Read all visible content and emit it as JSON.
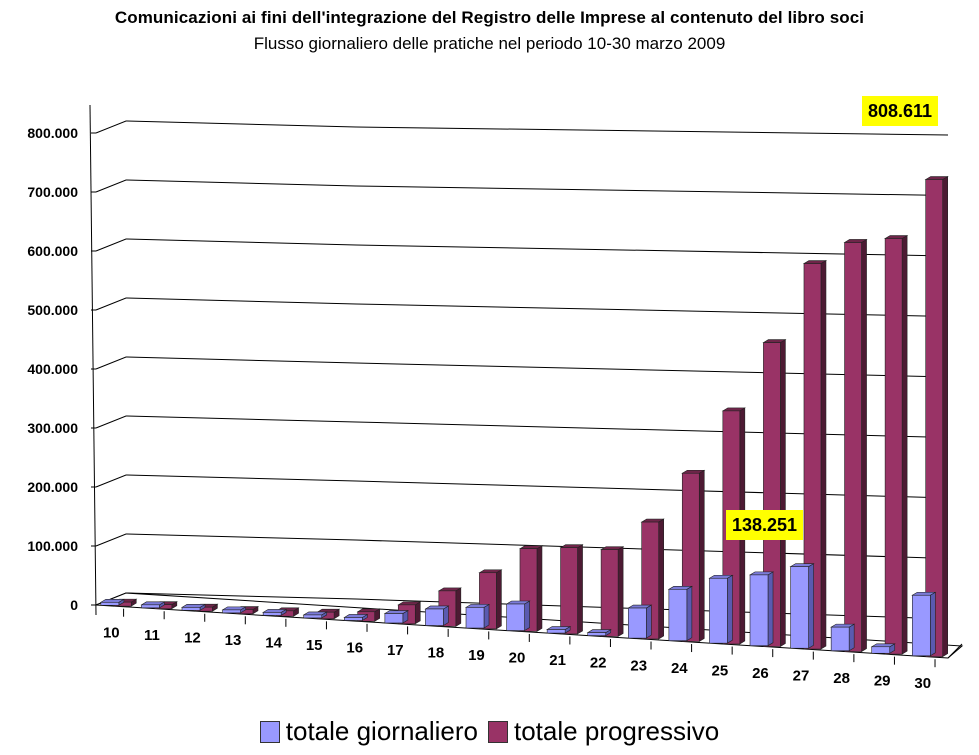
{
  "header": {
    "title": "Comunicazioni ai fini dell'integrazione del Registro delle Imprese al contenuto del libro soci",
    "subtitle": "Flusso giornaliero delle pratiche nel periodo 10-30 marzo 2009"
  },
  "legend": {
    "daily_label": "totale giornaliero",
    "cumulative_label": "totale progressivo"
  },
  "callouts": {
    "max_cumulative": "808.611",
    "max_daily": "138.251"
  },
  "colors": {
    "daily": "#9999ff",
    "daily_side": "#5a5ab0",
    "daily_top": "#7b7bd8",
    "cumulative": "#993366",
    "cumulative_side": "#4d1a33",
    "cumulative_top": "#6e2549",
    "callout_bg": "#ffff00",
    "grid": "#000000"
  },
  "chart_data": {
    "type": "bar",
    "subtype": "3d-clustered-column",
    "title": "Comunicazioni ai fini dell'integrazione del Registro delle Imprese al contenuto del libro soci",
    "subtitle": "Flusso giornaliero delle pratiche nel periodo 10-30 marzo 2009",
    "xlabel": "",
    "ylabel": "",
    "categories": [
      "10",
      "11",
      "12",
      "13",
      "14",
      "15",
      "16",
      "17",
      "18",
      "19",
      "20",
      "21",
      "22",
      "23",
      "24",
      "25",
      "26",
      "27",
      "28",
      "29",
      "30"
    ],
    "series": [
      {
        "name": "totale giornaliero",
        "values": [
          300,
          1800,
          2000,
          3000,
          2000,
          2000,
          5000,
          16000,
          28000,
          35000,
          45000,
          6000,
          1000,
          51000,
          87000,
          110000,
          120000,
          138251,
          40000,
          11000,
          102611
        ]
      },
      {
        "name": "totale progressivo",
        "values": [
          300,
          2100,
          4100,
          7100,
          9100,
          11100,
          16100,
          32100,
          60100,
          95100,
          140100,
          146100,
          147100,
          198100,
          285100,
          395100,
          515100,
          653351,
          693351,
          704351,
          808611
        ]
      }
    ],
    "yticks": [
      "0",
      "100.000",
      "200.000",
      "300.000",
      "400.000",
      "500.000",
      "600.000",
      "700.000",
      "800.000"
    ],
    "ylim": [
      0,
      800000
    ],
    "grid": true,
    "legend_position": "bottom",
    "annotations": [
      {
        "text": "808.611",
        "series": "totale progressivo",
        "category": "30"
      },
      {
        "text": "138.251",
        "series": "totale giornaliero",
        "category": "27"
      }
    ]
  }
}
